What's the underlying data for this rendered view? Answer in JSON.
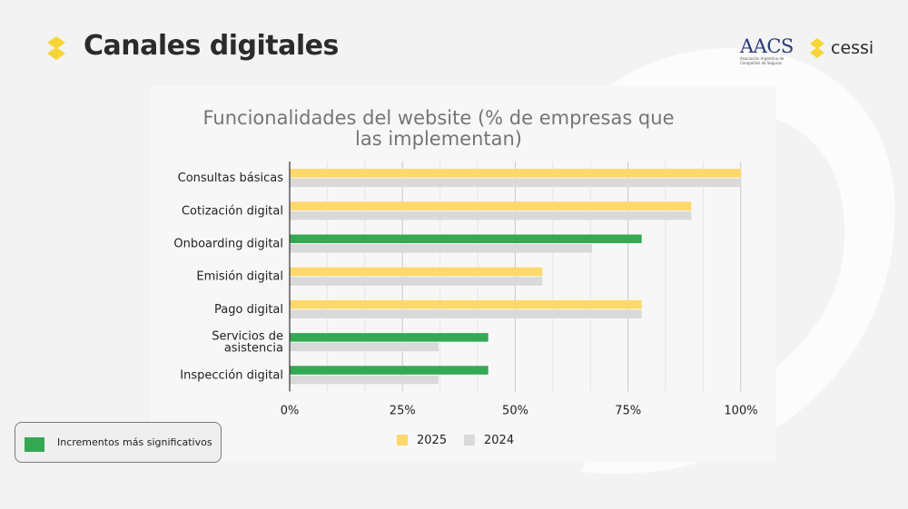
{
  "header": {
    "title": "Canales digitales"
  },
  "logos": {
    "aacs": {
      "name": "AACS",
      "subtitle": "Asociación Argentina de Compañías de Seguros"
    },
    "cessi": {
      "name": "cessi"
    }
  },
  "colors": {
    "yellow": "#fdd86b",
    "gray": "#d9d9d9",
    "green": "#34a853",
    "accent": "#f6d536"
  },
  "chart_data": {
    "type": "bar",
    "orientation": "horizontal",
    "title": "Funcionalidades del website (% de empresas que las implementan)",
    "categories": [
      "Consultas básicas",
      "Cotización digital",
      "Onboarding digital",
      "Emisión digital",
      "Pago digital",
      "Servicios de asistencia",
      "Inspección digital"
    ],
    "series": [
      {
        "name": "2025",
        "color": "#fdd86b",
        "values": [
          100,
          89,
          78,
          56,
          78,
          44,
          44
        ]
      },
      {
        "name": "2024",
        "color": "#d9d9d9",
        "values": [
          100,
          89,
          67,
          56,
          78,
          33,
          33
        ]
      }
    ],
    "highlight": {
      "series": "2025",
      "color": "#34a853",
      "categories": [
        "Onboarding digital",
        "Servicios de asistencia",
        "Inspección digital"
      ]
    },
    "x_ticks": [
      "0%",
      "25%",
      "50%",
      "75%",
      "100%"
    ],
    "xlim": [
      0,
      100
    ],
    "grid": true,
    "legend_position": "bottom"
  },
  "side_legend": {
    "label": "Incrementos más significativos",
    "color": "#34a853"
  }
}
